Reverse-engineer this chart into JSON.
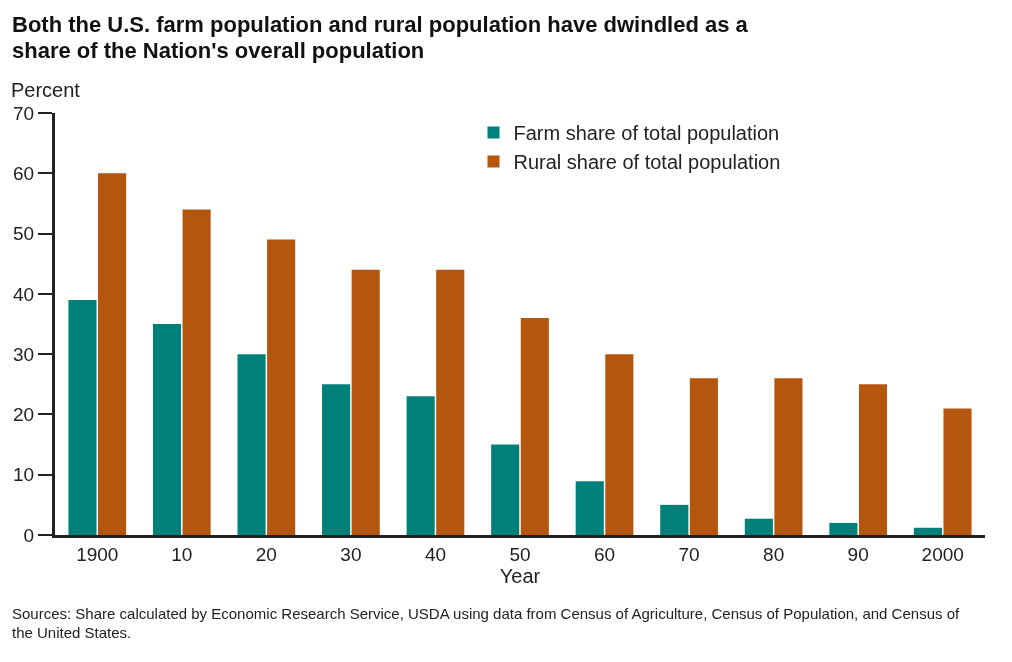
{
  "chart_data": {
    "type": "bar",
    "title": "Both the U.S. farm population and rural population have dwindled as a share of the Nation's overall population",
    "ylabel": "Percent",
    "xlabel": "Year",
    "categories": [
      "1900",
      "10",
      "20",
      "30",
      "40",
      "50",
      "60",
      "70",
      "80",
      "90",
      "2000"
    ],
    "series": [
      {
        "name": "Farm share of total population",
        "color": "#00807a",
        "values": [
          39,
          35,
          30,
          25,
          23,
          15,
          8.9,
          5,
          2.7,
          2,
          1.2
        ]
      },
      {
        "name": "Rural share of total population",
        "color": "#b5560f",
        "values": [
          60,
          54,
          49,
          44,
          44,
          36,
          30,
          26,
          26,
          25,
          21
        ]
      }
    ],
    "ylim": [
      0,
      70
    ],
    "yticks": [
      0,
      10,
      20,
      30,
      40,
      50,
      60,
      70
    ],
    "grid": false,
    "legend": "top right",
    "annotations": [
      "Sources: Share calculated by Economic Research Service, USDA using data from Census of Agriculture, Census of Population, and Census of the United States."
    ]
  }
}
